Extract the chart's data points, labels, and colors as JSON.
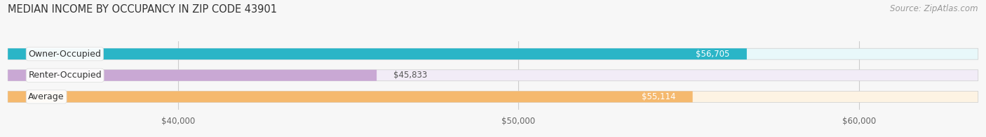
{
  "title": "MEDIAN INCOME BY OCCUPANCY IN ZIP CODE 43901",
  "source": "Source: ZipAtlas.com",
  "categories": [
    "Owner-Occupied",
    "Renter-Occupied",
    "Average"
  ],
  "values": [
    56705,
    45833,
    55114
  ],
  "bar_colors": [
    "#2ab5c7",
    "#c9a8d4",
    "#f5b96e"
  ],
  "bar_bg_colors": [
    "#e8f8fa",
    "#f2ecf7",
    "#fdf3e3"
  ],
  "value_labels": [
    "$56,705",
    "$45,833",
    "$55,114"
  ],
  "value_label_color_dark": [
    "#555555"
  ],
  "xmin": 35000,
  "xmax": 63500,
  "xticks": [
    40000,
    50000,
    60000
  ],
  "xtick_labels": [
    "$40,000",
    "$50,000",
    "$60,000"
  ],
  "figsize": [
    14.06,
    1.96
  ],
  "dpi": 100,
  "title_fontsize": 10.5,
  "source_fontsize": 8.5,
  "bar_label_fontsize": 9,
  "value_fontsize": 8.5,
  "tick_fontsize": 8.5
}
